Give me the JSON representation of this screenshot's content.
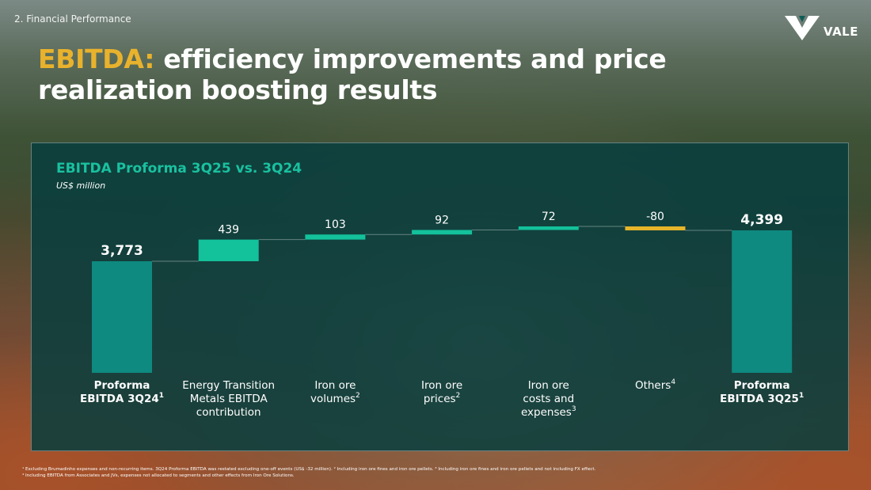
{
  "header": {
    "section": "2. Financial Performance",
    "logo_text": "VALE",
    "title_accent": "EBITDA:",
    "title_rest": " efficiency improvements and price realization boosting results"
  },
  "panel": {
    "title": "EBITDA Proforma 3Q25 vs. 3Q24",
    "unit": "US$ million"
  },
  "colors": {
    "accent_yellow": "#e9b22c",
    "total_bar": "#0e8a80",
    "increase_bar": "#13c19b",
    "decrease_bar": "#e7b52a",
    "panel_title": "#19c1a0"
  },
  "chart_data": {
    "type": "waterfall",
    "title": "EBITDA Proforma 3Q25 vs. 3Q24",
    "unit": "US$ million",
    "steps": [
      {
        "label": "Proforma EBITDA 3Q24",
        "superscript": "1",
        "value": 3773,
        "display": "3,773",
        "kind": "total"
      },
      {
        "label": "Energy Transition Metals EBITDA contribution",
        "superscript": "",
        "value": 439,
        "display": "439",
        "kind": "increase"
      },
      {
        "label": "Iron ore volumes",
        "superscript": "2",
        "value": 103,
        "display": "103",
        "kind": "increase"
      },
      {
        "label": "Iron ore prices",
        "superscript": "2",
        "value": 92,
        "display": "92",
        "kind": "increase"
      },
      {
        "label": "Iron ore costs and expenses",
        "superscript": "3",
        "value": 72,
        "display": "72",
        "kind": "increase"
      },
      {
        "label": "Others",
        "superscript": "4",
        "value": -80,
        "display": "-80",
        "kind": "decrease"
      },
      {
        "label": "Proforma EBITDA 3Q25",
        "superscript": "1",
        "value": 4399,
        "display": "4,399",
        "kind": "total"
      }
    ]
  },
  "footnotes": {
    "line1": "¹ Excluding Brumadinho expenses and non-recurring items. 3Q24 Proforma EBITDA was restated excluding one-off events (US$ -32 million). ² Including iron ore fines and iron ore pellets.   ³ Including iron ore fines and iron ore pellets and not including FX effect.",
    "line2": "⁴ Including EBITDA from Associates and JVs, expenses not allocated to segments and other effects from Iron Ore Solutions."
  }
}
